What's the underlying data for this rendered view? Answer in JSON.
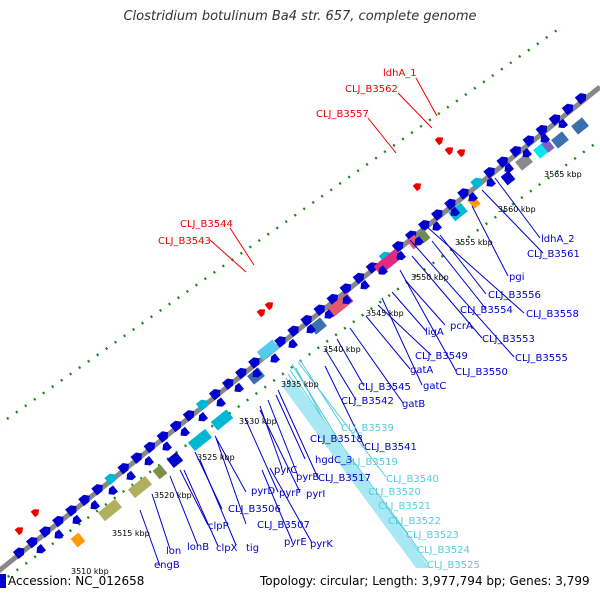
{
  "title": "Clostridium botulinum Ba4 str. 657, complete genome",
  "footer": {
    "accession": "Accession: NC_012658",
    "summary": "Topology: circular; Length: 3,977,794 bp; Genes: 3,799"
  },
  "colors": {
    "blue": "#0000cc",
    "red": "#ee0000",
    "cyan": "#55ccdd",
    "backbone": "#888888",
    "dots": "#1a8a1a"
  },
  "ticks": [
    "3510 kbp",
    "3515 kbp",
    "3520 kbp",
    "3525 kbp",
    "3530 kbp",
    "3535 kbp",
    "3540 kbp",
    "3545 kbp",
    "3550 kbp",
    "3555 kbp",
    "3560 kbp",
    "3565 kbp"
  ],
  "labels": {
    "red": [
      "ldhA_1",
      "CLJ_B3562",
      "CLJ_B3557",
      "CLJ_B3544",
      "CLJ_B3543"
    ],
    "blue": [
      "ldhA_2",
      "CLJ_B3561",
      "pgi",
      "CLJ_B3556",
      "CLJ_B3554",
      "CLJ_B3558",
      "pcrA",
      "ligA",
      "CLJ_B3553",
      "CLJ_B3549",
      "gatA",
      "CLJ_B3550",
      "CLJ_B3555",
      "CLJ_B3545",
      "gatC",
      "CLJ_B3542",
      "gatB",
      "CLJ_B3518",
      "CLJ_B3541",
      "hgdC_3",
      "pyrC",
      "pyrB",
      "CLJ_B3517",
      "pyrD",
      "pyrF",
      "pyrI",
      "CLJ_B3506",
      "CLJ_B3507",
      "clpP",
      "tig",
      "lonB",
      "clpX",
      "lon",
      "engB",
      "pyrE",
      "pyrK"
    ],
    "cyan": [
      "CLJ_B3539",
      "CLJ_B3519",
      "CLJ_B3540",
      "CLJ_B3520",
      "CLJ_B3521",
      "CLJ_B3522",
      "CLJ_B3523",
      "CLJ_B3524",
      "CLJ_B3525"
    ]
  }
}
